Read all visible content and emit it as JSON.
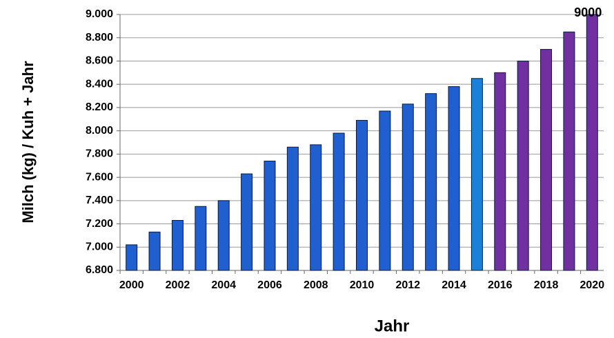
{
  "chart_data": {
    "type": "bar",
    "x_label": "Jahr",
    "y_label": "Milch (kg) / Kuh + Jahr",
    "categories": [
      "2000",
      null,
      "2002",
      null,
      "2004",
      null,
      "2006",
      null,
      "2008",
      null,
      "2010",
      null,
      "2012",
      null,
      "2014",
      null,
      "2016",
      null,
      "2018",
      null,
      "2020"
    ],
    "values": [
      7020,
      7130,
      7230,
      7350,
      7400,
      7630,
      7740,
      7860,
      7880,
      7980,
      8090,
      8170,
      8230,
      8320,
      8380,
      8450,
      8500,
      8600,
      8700,
      8850,
      9000
    ],
    "value_labels": [
      null,
      null,
      null,
      null,
      null,
      null,
      null,
      null,
      null,
      null,
      null,
      null,
      null,
      null,
      null,
      null,
      null,
      null,
      null,
      null,
      "9000"
    ],
    "colors": [
      "#1f5fd0",
      "#1f5fd0",
      "#1f5fd0",
      "#1f5fd0",
      "#1f5fd0",
      "#1f5fd0",
      "#1f5fd0",
      "#1f5fd0",
      "#1f5fd0",
      "#1f5fd0",
      "#1f5fd0",
      "#1f5fd0",
      "#1f5fd0",
      "#1f5fd0",
      "#1f5fd0",
      "#1a80d8",
      "#7030a0",
      "#7030a0",
      "#7030a0",
      "#7030a0",
      "#7030a0"
    ],
    "ylim": [
      6800,
      9000
    ],
    "yticks": [
      {
        "value": 6800,
        "label": "6.800"
      },
      {
        "value": 7000,
        "label": "7.000"
      },
      {
        "value": 7200,
        "label": "7.200"
      },
      {
        "value": 7400,
        "label": "7.400"
      },
      {
        "value": 7600,
        "label": "7.600"
      },
      {
        "value": 7800,
        "label": "7.800"
      },
      {
        "value": 8000,
        "label": "8.000"
      },
      {
        "value": 8200,
        "label": "8.200"
      },
      {
        "value": 8400,
        "label": "8.400"
      },
      {
        "value": 8600,
        "label": "8.600"
      },
      {
        "value": 8800,
        "label": "8.800"
      },
      {
        "value": 9000,
        "label": "9.000"
      }
    ],
    "grid": true
  }
}
